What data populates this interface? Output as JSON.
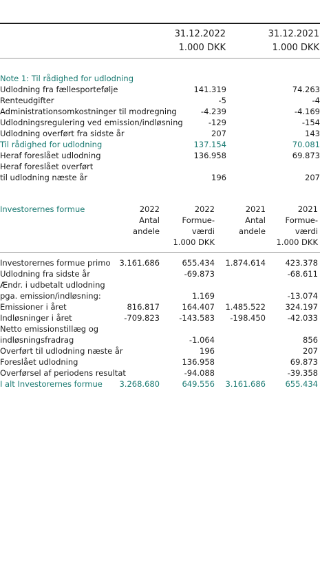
{
  "header": {
    "date_col1": "31.12.2022",
    "date_col2": "31.12.2021",
    "unit_col1": "1.000 DKK",
    "unit_col2": "1.000 DKK"
  },
  "note1": {
    "title": "Note 1: Til rådighed for udlodning",
    "rows": [
      {
        "label": "Udlodning fra fællesportefølje",
        "v2022": "141.319",
        "v2021": "74.263"
      },
      {
        "label": "Renteudgifter",
        "v2022": "-5",
        "v2021": "-4"
      },
      {
        "label": "Administrationsomkostninger til modregning",
        "v2022": "-4.239",
        "v2021": "-4.169"
      },
      {
        "label": "Udlodningsregulering ved emission/indløsning",
        "v2022": "-129",
        "v2021": "-154"
      },
      {
        "label": "Udlodning overført fra sidste år",
        "v2022": "207",
        "v2021": "143"
      }
    ],
    "total": {
      "label": "Til rådighed for udlodning",
      "v2022": "137.154",
      "v2021": "70.081"
    },
    "proposed": {
      "label": "Heraf foreslået udlodning",
      "v2022": "136.958",
      "v2021": "69.873"
    },
    "carried": {
      "label_line1": "Heraf foreslået overført",
      "label_line2": "til udlodning næste år",
      "v2022": "196",
      "v2021": "207"
    }
  },
  "investor": {
    "title": "Investorernes formue",
    "col_headers": [
      {
        "line1": "2022",
        "line2": "Antal",
        "line3": "andele",
        "line4": ""
      },
      {
        "line1": "2022",
        "line2": "Formue-",
        "line3": "værdi",
        "line4": "1.000 DKK"
      },
      {
        "line1": "2021",
        "line2": "Antal",
        "line3": "andele",
        "line4": ""
      },
      {
        "line1": "2021",
        "line2": "Formue-",
        "line3": "værdi",
        "line4": "1.000 DKK"
      }
    ],
    "rows": [
      {
        "label": "Investorernes formue primo",
        "a2022": "3.161.686",
        "f2022": "655.434",
        "a2021": "1.874.614",
        "f2021": "423.378"
      },
      {
        "label": "Udlodning fra sidste år",
        "a2022": "",
        "f2022": "-69.873",
        "a2021": "",
        "f2021": "-68.611"
      },
      {
        "label": "Ændr. i udbetalt udlodning",
        "a2022": "",
        "f2022": "",
        "a2021": "",
        "f2021": ""
      },
      {
        "label": "pga. emission/indløsning:",
        "a2022": "",
        "f2022": "1.169",
        "a2021": "",
        "f2021": "-13.074"
      },
      {
        "label": "Emissioner i året",
        "a2022": "816.817",
        "f2022": "164.407",
        "a2021": "1.485.522",
        "f2021": "324.197"
      },
      {
        "label": "Indløsninger i året",
        "a2022": "-709.823",
        "f2022": "-143.583",
        "a2021": "-198.450",
        "f2021": "-42.033"
      },
      {
        "label": "Netto emissionstillæg og",
        "a2022": "",
        "f2022": "",
        "a2021": "",
        "f2021": ""
      },
      {
        "label": "indløsningsfradrag",
        "a2022": "",
        "f2022": "-1.064",
        "a2021": "",
        "f2021": "856"
      },
      {
        "label": "Overført til udlodning næste år",
        "a2022": "",
        "f2022": "196",
        "a2021": "",
        "f2021": "207"
      },
      {
        "label": "Foreslået udlodning",
        "a2022": "",
        "f2022": "136.958",
        "a2021": "",
        "f2021": "69.873"
      },
      {
        "label": "Overførsel af periodens resultat",
        "a2022": "",
        "f2022": "-94.088",
        "a2021": "",
        "f2021": "-39.358"
      }
    ],
    "total": {
      "label": "I alt Investorernes formue",
      "a2022": "3.268.680",
      "f2022": "649.556",
      "a2021": "3.161.686",
      "f2021": "655.434"
    }
  },
  "colors": {
    "accent": "#1a7a72",
    "text": "#1a1a1a"
  }
}
